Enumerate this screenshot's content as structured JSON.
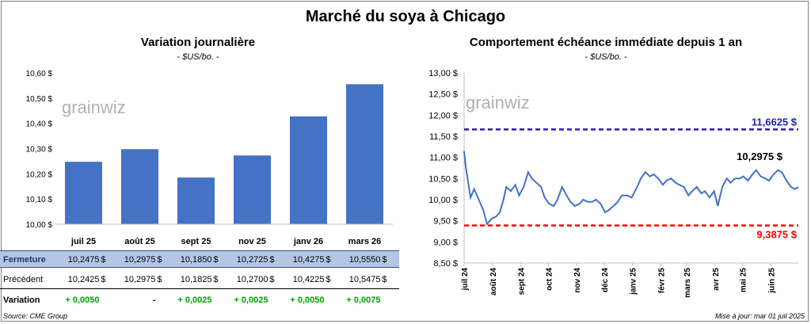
{
  "title": "Marché du soya à Chicago",
  "left_chart": {
    "title": "Variation journalière",
    "unit": "- $US/bo. -"
  },
  "right_chart": {
    "title": "Comportement échéance immédiate depuis 1 an",
    "unit": "- $US/bo. -"
  },
  "watermark": "grainwiz",
  "table": {
    "rows": [
      {
        "label": "Fermeture",
        "values": [
          "10,2475",
          "10,2975",
          "10,1850",
          "10,2725",
          "10,4275",
          "10,5550"
        ]
      },
      {
        "label": "Précédent",
        "values": [
          "10,2425",
          "10,2975",
          "10,1825",
          "10,2700",
          "10,4225",
          "10,5475"
        ]
      }
    ],
    "variation": {
      "label": "Variation",
      "values": [
        "+ 0,0050",
        "-",
        "+ 0,0025",
        "+ 0,0025",
        "+ 0,0050",
        "+ 0,0075"
      ]
    },
    "currency": "$"
  },
  "footer": {
    "source": "Source: CME Group",
    "updated": "Mise à jour: mar 01 juil 2025"
  },
  "chart_data": [
    {
      "type": "bar",
      "title": "Variation journalière",
      "categories": [
        "juil 25",
        "août 25",
        "sept 25",
        "nov 25",
        "janv 26",
        "mars 26"
      ],
      "values": [
        10.2475,
        10.2975,
        10.185,
        10.2725,
        10.4275,
        10.555
      ],
      "ylim": [
        10.0,
        10.6
      ],
      "yticks": [
        "10,00 $",
        "10,10 $",
        "10,20 $",
        "10,30 $",
        "10,40 $",
        "10,50 $",
        "10,60 $"
      ],
      "color": "#4472c4"
    },
    {
      "type": "line",
      "title": "Comportement échéance immédiate depuis 1 an",
      "ylim": [
        8.5,
        13.0
      ],
      "yticks": [
        "8,50 $",
        "9,00 $",
        "9,50 $",
        "10,00 $",
        "10,50 $",
        "11,00 $",
        "11,50 $",
        "12,00 $",
        "12,50 $",
        "13,00 $"
      ],
      "xticks": [
        "juil 24",
        "août 24",
        "sept 24",
        "oct 24",
        "nov 24",
        "déc 24",
        "janv 25",
        "févr 25",
        "mars 25",
        "avr 25",
        "mai 25",
        "juin 25"
      ],
      "series_color": "#4472c4",
      "x": [
        "2024-07-01",
        "2024-07-03",
        "2024-07-08",
        "2024-07-12",
        "2024-07-17",
        "2024-07-22",
        "2024-07-26",
        "2024-07-31",
        "2024-08-05",
        "2024-08-09",
        "2024-08-13",
        "2024-08-16",
        "2024-08-21",
        "2024-08-26",
        "2024-08-30",
        "2024-09-04",
        "2024-09-09",
        "2024-09-13",
        "2024-09-18",
        "2024-09-23",
        "2024-09-27",
        "2024-10-02",
        "2024-10-07",
        "2024-10-11",
        "2024-10-16",
        "2024-10-21",
        "2024-10-25",
        "2024-10-30",
        "2024-11-04",
        "2024-11-08",
        "2024-11-13",
        "2024-11-18",
        "2024-11-22",
        "2024-11-27",
        "2024-12-02",
        "2024-12-06",
        "2024-12-11",
        "2024-12-16",
        "2024-12-20",
        "2024-12-26",
        "2024-12-31",
        "2025-01-06",
        "2025-01-10",
        "2025-01-15",
        "2025-01-20",
        "2025-01-24",
        "2025-01-29",
        "2025-02-03",
        "2025-02-07",
        "2025-02-12",
        "2025-02-17",
        "2025-02-21",
        "2025-02-26",
        "2025-03-03",
        "2025-03-07",
        "2025-03-12",
        "2025-03-17",
        "2025-03-21",
        "2025-03-26",
        "2025-03-31",
        "2025-04-04",
        "2025-04-09",
        "2025-04-14",
        "2025-04-18",
        "2025-04-23",
        "2025-04-28",
        "2025-05-02",
        "2025-05-07",
        "2025-05-12",
        "2025-05-16",
        "2025-05-21",
        "2025-05-26",
        "2025-05-30",
        "2025-06-04",
        "2025-06-09",
        "2025-06-13",
        "2025-06-18",
        "2025-06-23",
        "2025-06-27",
        "2025-07-01"
      ],
      "y": [
        11.15,
        10.75,
        10.05,
        10.25,
        10.0,
        9.75,
        9.42,
        9.55,
        9.6,
        9.7,
        10.0,
        10.3,
        10.2,
        10.35,
        10.1,
        10.3,
        10.65,
        10.5,
        10.4,
        10.3,
        10.05,
        9.9,
        9.85,
        10.0,
        10.3,
        10.1,
        9.95,
        9.85,
        9.9,
        10.0,
        9.95,
        9.95,
        10.0,
        9.9,
        9.7,
        9.75,
        9.85,
        9.95,
        10.1,
        10.1,
        10.05,
        10.3,
        10.5,
        10.65,
        10.55,
        10.6,
        10.5,
        10.35,
        10.45,
        10.5,
        10.4,
        10.35,
        10.3,
        10.1,
        10.2,
        10.3,
        10.15,
        10.2,
        10.05,
        10.2,
        9.85,
        10.3,
        10.5,
        10.4,
        10.5,
        10.5,
        10.55,
        10.45,
        10.6,
        10.7,
        10.55,
        10.5,
        10.45,
        10.6,
        10.7,
        10.65,
        10.45,
        10.3,
        10.25,
        10.2975
      ],
      "reference_lines": [
        {
          "value": 11.6625,
          "label": "11,6625 $",
          "color": "#2020b0"
        },
        {
          "value": 9.3875,
          "label": "9,3875 $",
          "color": "#ff0000"
        }
      ],
      "last_label": "10,2975 $"
    }
  ]
}
